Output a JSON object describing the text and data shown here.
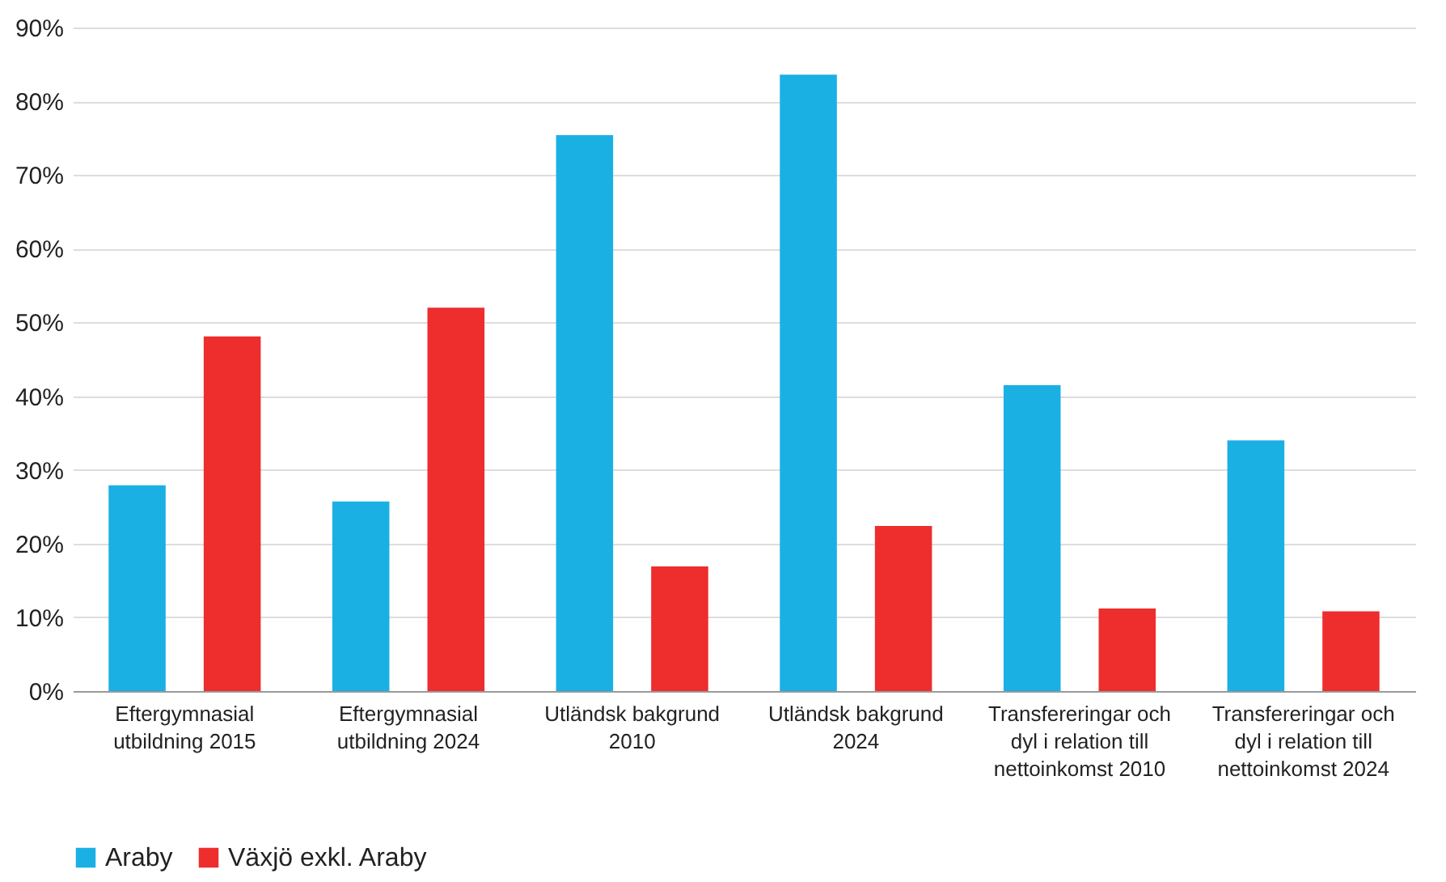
{
  "chart_data": {
    "type": "bar",
    "categories": [
      "Eftergymnasial utbildning 2015",
      "Eftergymnasial utbildning 2024",
      "Utländsk bakgrund 2010",
      "Utländsk bakgrund 2024",
      "Transfereringar och dyl i relation till nettoinkomst 2010",
      "Transfereringar och dyl i relation till nettoinkomst 2024"
    ],
    "series": [
      {
        "name": "Araby",
        "color": "#1ab0e4",
        "values": [
          27.9,
          25.7,
          75.4,
          83.6,
          41.5,
          34.0
        ]
      },
      {
        "name": "Växjö exkl. Araby",
        "color": "#ee2d2d",
        "values": [
          48.1,
          52.0,
          16.9,
          22.4,
          11.2,
          10.8
        ]
      }
    ],
    "ylim": [
      0,
      90
    ],
    "yticks": [
      {
        "value": 0,
        "label": "0%"
      },
      {
        "value": 10,
        "label": "10%"
      },
      {
        "value": 20,
        "label": "20%"
      },
      {
        "value": 30,
        "label": "30%"
      },
      {
        "value": 40,
        "label": "40%"
      },
      {
        "value": 50,
        "label": "50%"
      },
      {
        "value": 60,
        "label": "60%"
      },
      {
        "value": 70,
        "label": "70%"
      },
      {
        "value": 80,
        "label": "80%"
      },
      {
        "value": 90,
        "label": "90%"
      }
    ],
    "grid": "y",
    "legend": "bottom"
  }
}
